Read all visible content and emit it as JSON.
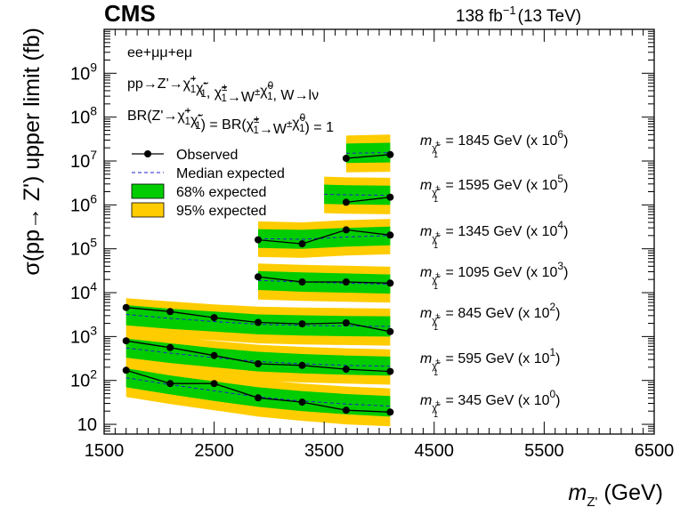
{
  "header": {
    "experiment": "CMS",
    "lumi": "138 fb",
    "lumi_exp": "−1",
    "energy": "(13 TeV)"
  },
  "axes": {
    "ylabel": "σ(pp→ Z') upper limit (fb)",
    "xlabel_main": "m",
    "xlabel_sub": "Z'",
    "xlabel_unit": " (GeV)"
  },
  "process": {
    "channel": "ee+μμ+eμ",
    "decay_parts": [
      "pp→Z'→",
      "χ̃",
      "+",
      "1",
      "χ̃",
      "-",
      "1",
      ", ",
      "χ̃",
      "±",
      "1",
      "→W",
      "±",
      "χ̃",
      "0",
      "1",
      ", W→lν"
    ],
    "br_parts": [
      "BR(Z'→",
      "χ̃",
      "+",
      "1",
      "χ̃",
      "-",
      "1",
      ") = BR(",
      "χ̃",
      "±",
      "1",
      "→W",
      "±",
      "χ̃",
      "0",
      "1",
      ") = 1"
    ]
  },
  "legend": {
    "items": [
      {
        "label": "Observed",
        "kind": "observed"
      },
      {
        "label": "Median expected",
        "kind": "expected"
      },
      {
        "label": "68% expected",
        "kind": "band68"
      },
      {
        "label": "95% expected",
        "kind": "band95"
      }
    ]
  },
  "chart_data": {
    "type": "line",
    "x_scale": "linear",
    "y_scale": "log",
    "xlim": [
      1500,
      6500
    ],
    "ylim": [
      6,
      10000000000.0
    ],
    "x_ticks": [
      "1500",
      "2500",
      "3500",
      "4500",
      "5500",
      "6500"
    ],
    "x_tick_values": [
      1500,
      2500,
      3500,
      4500,
      5500,
      6500
    ],
    "y_ticks": [
      {
        "value": 10,
        "label": "10",
        "exp": ""
      },
      {
        "value": 100,
        "label": "10",
        "exp": "2"
      },
      {
        "value": 1000,
        "label": "10",
        "exp": "3"
      },
      {
        "value": 10000,
        "label": "10",
        "exp": "4"
      },
      {
        "value": 100000,
        "label": "10",
        "exp": "5"
      },
      {
        "value": 1000000,
        "label": "10",
        "exp": "6"
      },
      {
        "value": 10000000,
        "label": "10",
        "exp": "7"
      },
      {
        "value": 100000000,
        "label": "10",
        "exp": "8"
      },
      {
        "value": 1000000000,
        "label": "10",
        "exp": "9"
      }
    ],
    "colors": {
      "band68": "#00cc00",
      "band95": "#ffcc00",
      "expected": "#2222cc",
      "observed": "#000000"
    },
    "series": [
      {
        "label_prefix": "m",
        "label_sub": "χ̃",
        "label_subsub": "1",
        "label_supsup": "±",
        "label_text": " = 845 GeV (x 10",
        "label_exp": "2",
        "label_end": ")",
        "x": [
          1700,
          2100,
          2500,
          2900,
          3300,
          3700,
          4100
        ],
        "observed": [
          4600,
          3700,
          2700,
          2100,
          1950,
          2050,
          1300
        ],
        "expected": [
          3200,
          2600,
          2200,
          1900,
          1800,
          1750,
          1700
        ],
        "band68_lo": [
          1800,
          1500,
          1300,
          1120,
          1050,
          1020,
          1000
        ],
        "band68_hi": [
          5200,
          4300,
          3700,
          3200,
          3050,
          2950,
          2900
        ],
        "band95_lo": [
          1100,
          950,
          820,
          700,
          660,
          640,
          620
        ],
        "band95_hi": [
          7500,
          6300,
          5400,
          4800,
          4600,
          4450,
          4350
        ]
      },
      {
        "label_prefix": "m",
        "label_sub": "χ̃",
        "label_subsub": "1",
        "label_supsup": "±",
        "label_text": " = 595 GeV (x 10",
        "label_exp": "1",
        "label_end": ")",
        "x": [
          1700,
          2100,
          2500,
          2900,
          3300,
          3700,
          4100
        ],
        "observed": [
          800,
          560,
          370,
          240,
          220,
          180,
          160
        ],
        "expected": [
          550,
          420,
          330,
          270,
          240,
          220,
          210
        ],
        "band68_lo": [
          330,
          250,
          200,
          160,
          145,
          135,
          128
        ],
        "band68_hi": [
          900,
          700,
          550,
          450,
          400,
          370,
          350
        ],
        "band95_lo": [
          200,
          155,
          125,
          100,
          90,
          85,
          80
        ],
        "band95_hi": [
          1300,
          1000,
          800,
          650,
          580,
          540,
          510
        ]
      },
      {
        "label_prefix": "m",
        "label_sub": "χ̃",
        "label_subsub": "1",
        "label_supsup": "±",
        "label_text": " = 345 GeV (x 10",
        "label_exp": "0",
        "label_end": ")",
        "x": [
          1700,
          2100,
          2500,
          2900,
          3300,
          3700,
          4100
        ],
        "observed": [
          170,
          85,
          85,
          40,
          32,
          21,
          19
        ],
        "expected": [
          115,
          80,
          58,
          42,
          34,
          29,
          26
        ],
        "band68_lo": [
          70,
          48,
          34,
          25,
          20,
          17,
          15
        ],
        "band68_hi": [
          190,
          130,
          95,
          70,
          57,
          49,
          44
        ],
        "band95_lo": [
          42,
          29,
          21,
          15,
          12,
          10,
          9
        ],
        "band95_hi": [
          280,
          195,
          140,
          105,
          85,
          73,
          66
        ]
      },
      {
        "label_prefix": "m",
        "label_sub": "χ̃",
        "label_subsub": "1",
        "label_supsup": "±",
        "label_text": " = 1095 GeV (x 10",
        "label_exp": "3",
        "label_end": ")",
        "x": [
          2900,
          3300,
          3700,
          4100
        ],
        "observed": [
          23000,
          17500,
          17500,
          16500
        ],
        "expected": [
          19000,
          17500,
          16500,
          15500
        ],
        "band68_lo": [
          11500,
          10500,
          10000,
          9500
        ],
        "band68_hi": [
          31000,
          29000,
          27500,
          26000
        ],
        "band95_lo": [
          7000,
          6500,
          6200,
          5900
        ],
        "band95_hi": [
          46000,
          43000,
          41000,
          39000
        ]
      },
      {
        "label_prefix": "m",
        "label_sub": "χ̃",
        "label_subsub": "1",
        "label_supsup": "±",
        "label_text": " = 1345 GeV (x 10",
        "label_exp": "4",
        "label_end": ")",
        "x": [
          2900,
          3300,
          3700,
          4100
        ],
        "observed": [
          160000,
          130000,
          270000,
          205000
        ],
        "expected": [
          170000,
          165000,
          185000,
          200000
        ],
        "band68_lo": [
          105000,
          100000,
          112000,
          120000
        ],
        "band68_hi": [
          280000,
          270000,
          300000,
          320000
        ],
        "band95_lo": [
          65000,
          62000,
          70000,
          75000
        ],
        "band95_hi": [
          420000,
          400000,
          450000,
          480000
        ]
      },
      {
        "label_prefix": "m",
        "label_sub": "χ̃",
        "label_subsub": "1",
        "label_supsup": "±",
        "label_text": " = 1595 GeV (x 10",
        "label_exp": "5",
        "label_end": ")",
        "x": [
          3500,
          3700,
          4100
        ],
        "observed": [
          null,
          1150000,
          1500000
        ],
        "expected": [
          1750000,
          1700000,
          1650000
        ],
        "band68_lo": [
          1050000,
          1030000,
          1000000
        ],
        "band68_hi": [
          2900000,
          2800000,
          2750000
        ],
        "band95_lo": [
          650000,
          630000,
          610000
        ],
        "band95_hi": [
          4400000,
          4250000,
          4150000
        ]
      },
      {
        "label_prefix": "m",
        "label_sub": "χ̃",
        "label_subsub": "1",
        "label_supsup": "±",
        "label_text": " = 1845 GeV (x 10",
        "label_exp": "6",
        "label_end": ")",
        "x": [
          3700,
          4100
        ],
        "observed": [
          11500000,
          14000000
        ],
        "expected": [
          15000000,
          15500000
        ],
        "band68_lo": [
          9000000,
          9300000
        ],
        "band68_hi": [
          25000000,
          26000000
        ],
        "band95_lo": [
          5500000,
          5700000
        ],
        "band95_hi": [
          38000000,
          40000000
        ]
      }
    ]
  }
}
